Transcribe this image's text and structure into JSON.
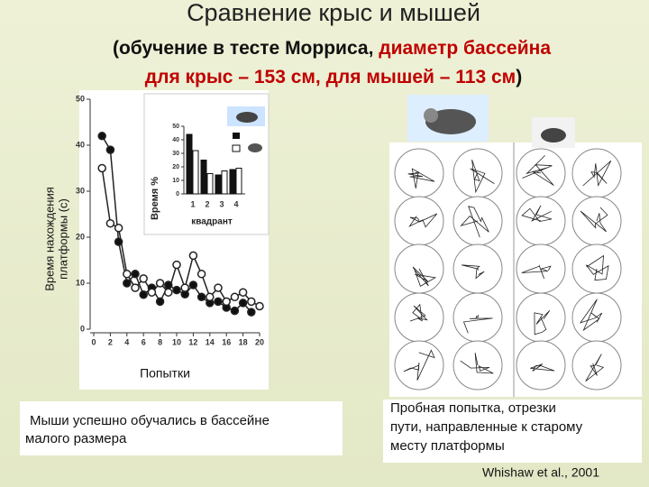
{
  "header": {
    "title": "Сравнение крыс и мышей",
    "subtitle": [
      "(обучение в тесте Морриса, ",
      "диаметр бассейна",
      "для крыс – 153 см, для мышей – 113 см",
      ")"
    ]
  },
  "chart_data": [
    {
      "type": "line",
      "ylabel": [
        "Время нахождения",
        "платформы (с)"
      ],
      "xlabel": "Попытки",
      "x": [
        1,
        2,
        3,
        4,
        5,
        6,
        7,
        8,
        9,
        10,
        11,
        12,
        13,
        14,
        15,
        16,
        17,
        18,
        19,
        20
      ],
      "series": [
        {
          "color": "#111111",
          "values": [
            42,
            39,
            19,
            10,
            12,
            7.5,
            9,
            6,
            9.6,
            8.5,
            7.6,
            9.6,
            7,
            5.7,
            6,
            4.7,
            4,
            5.7,
            3.7,
            null
          ]
        },
        {
          "color": "#ffffff",
          "values": [
            35,
            23,
            22,
            12,
            9,
            11,
            8,
            10,
            8,
            14,
            9,
            16,
            12,
            7,
            9,
            6,
            7,
            8,
            6,
            5
          ]
        }
      ],
      "xlim": [
        0,
        20
      ],
      "xticks": [
        0,
        2,
        4,
        6,
        8,
        10,
        12,
        14,
        16,
        18,
        20
      ],
      "ylim": [
        0,
        50
      ],
      "yticks": [
        0,
        10,
        20,
        30,
        40,
        50
      ]
    },
    {
      "type": "bar",
      "ylabel": "Время %",
      "xlabel": "квадрант",
      "categories": [
        "1",
        "2",
        "3",
        "4"
      ],
      "series": [
        {
          "color": "#111111",
          "values": [
            44,
            25,
            14,
            18
          ]
        },
        {
          "color": "#ffffff",
          "values": [
            32,
            15,
            17,
            19
          ]
        }
      ],
      "ylim": [
        0,
        50
      ],
      "yticks": [
        0,
        10,
        20,
        30,
        40,
        50
      ]
    }
  ],
  "notes": {
    "left": [
      "Мыши успешно обучались в бассейне",
      "малого размера"
    ],
    "right": [
      "Пробная попытка, отрезки",
      "пути, направленные к старому",
      "месту платформы"
    ],
    "citation": "Whishaw et al., 2001"
  }
}
